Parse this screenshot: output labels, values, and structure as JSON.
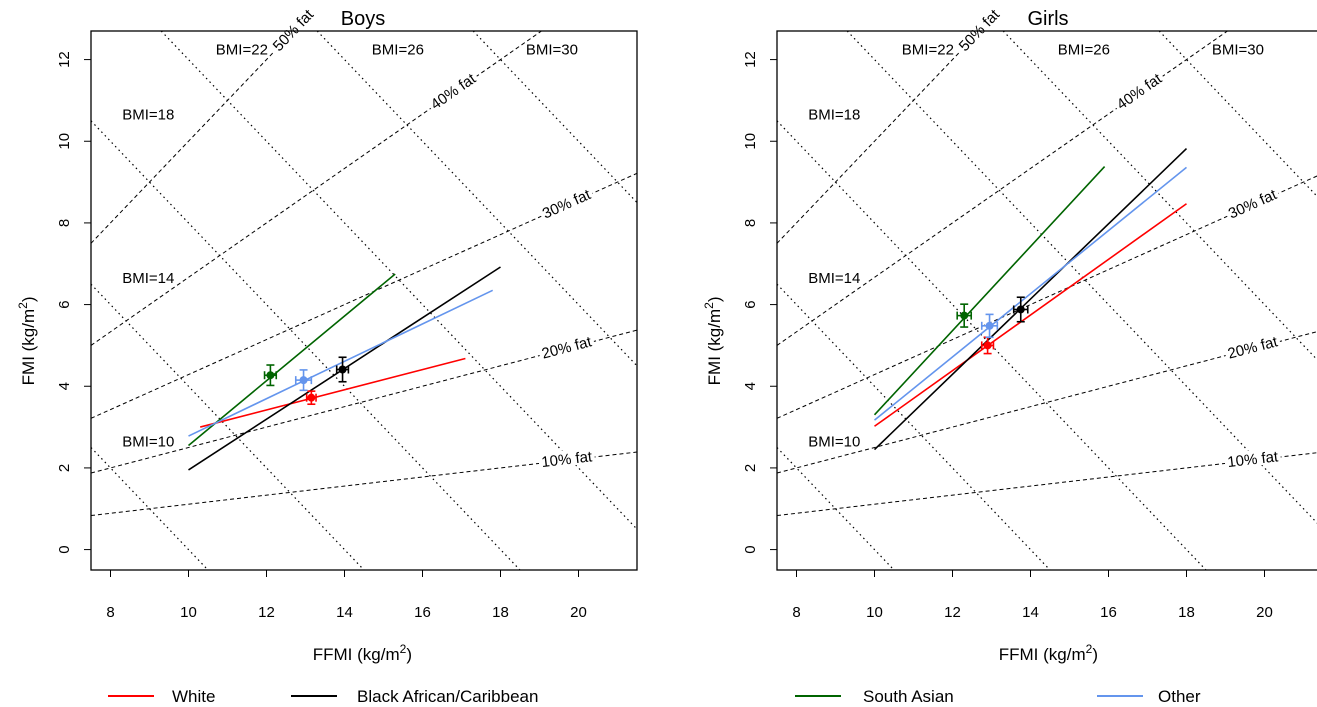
{
  "chart_data": [
    {
      "type": "line",
      "title": "Boys",
      "xlabel": "FFMI (kg/m",
      "xlabel_sup": "2",
      "xlabel_end": ")",
      "ylabel": "FMI (kg/m",
      "ylabel_sup": "2",
      "ylabel_end": ")",
      "xlim": [
        7.5,
        21.5
      ],
      "ylim": [
        -0.5,
        12.7
      ],
      "xticks": [
        8,
        10,
        12,
        14,
        16,
        18,
        20
      ],
      "yticks": [
        0,
        2,
        4,
        6,
        8,
        10,
        12
      ],
      "grid": false,
      "bmi_contours": [
        10,
        14,
        18,
        22,
        26,
        30
      ],
      "fat_contours": [
        10,
        20,
        30,
        40,
        50
      ],
      "bmi_labels": [
        {
          "bmi": 10,
          "text": "BMI=10",
          "x": 8.3,
          "y": 2.65
        },
        {
          "bmi": 14,
          "text": "BMI=14",
          "x": 8.3,
          "y": 6.65
        },
        {
          "bmi": 18,
          "text": "BMI=18",
          "x": 8.3,
          "y": 10.65
        },
        {
          "bmi": 22,
          "text": "BMI=22",
          "x": 10.7,
          "y": 12.25
        },
        {
          "bmi": 26,
          "text": "BMI=26",
          "x": 14.7,
          "y": 12.25
        },
        {
          "bmi": 30,
          "text": "BMI=30",
          "x": 18.65,
          "y": 12.25
        }
      ],
      "fat_labels": [
        {
          "pct": 10,
          "text": "10% fat",
          "x": 19.7
        },
        {
          "pct": 20,
          "text": "20% fat",
          "x": 19.7
        },
        {
          "pct": 30,
          "text": "30% fat",
          "x": 19.7
        },
        {
          "pct": 40,
          "text": "40% fat",
          "x": 16.8
        },
        {
          "pct": 50,
          "text": "50% fat",
          "x": 12.7
        }
      ],
      "series": [
        {
          "name": "White",
          "color": "#ff0000",
          "line": {
            "x": [
              10.3,
              17.1
            ],
            "y": [
              3.0,
              4.68
            ]
          },
          "point": {
            "x": 13.15,
            "y": 3.72,
            "xerr": 0.12,
            "yerr": 0.16
          }
        },
        {
          "name": "Black African/Caribbean",
          "color": "#000000",
          "line": {
            "x": [
              10.0,
              18.0
            ],
            "y": [
              1.95,
              6.92
            ]
          },
          "point": {
            "x": 13.95,
            "y": 4.41,
            "xerr": 0.15,
            "yerr": 0.3
          }
        },
        {
          "name": "South Asian",
          "color": "#006400",
          "line": {
            "x": [
              10.0,
              15.3
            ],
            "y": [
              2.55,
              6.75
            ]
          },
          "point": {
            "x": 12.1,
            "y": 4.27,
            "xerr": 0.15,
            "yerr": 0.25
          }
        },
        {
          "name": "Other",
          "color": "#6495ed",
          "line": {
            "x": [
              10.0,
              17.8
            ],
            "y": [
              2.78,
              6.35
            ]
          },
          "point": {
            "x": 12.95,
            "y": 4.15,
            "xerr": 0.2,
            "yerr": 0.25
          }
        }
      ]
    },
    {
      "type": "line",
      "title": "Girls",
      "xlabel": "FFMI (kg/m",
      "xlabel_sup": "2",
      "xlabel_end": ")",
      "ylabel": "FMI (kg/m",
      "ylabel_sup": "2",
      "ylabel_end": ")",
      "xlim": [
        7.5,
        21.5
      ],
      "ylim": [
        -0.5,
        12.7
      ],
      "xticks": [
        8,
        10,
        12,
        14,
        16,
        18,
        20
      ],
      "yticks": [
        0,
        2,
        4,
        6,
        8,
        10,
        12
      ],
      "grid": false,
      "bmi_contours": [
        10,
        14,
        18,
        22,
        26,
        30
      ],
      "fat_contours": [
        10,
        20,
        30,
        40,
        50
      ],
      "bmi_labels": [
        {
          "bmi": 10,
          "text": "BMI=10",
          "x": 8.3,
          "y": 2.65
        },
        {
          "bmi": 14,
          "text": "BMI=14",
          "x": 8.3,
          "y": 6.65
        },
        {
          "bmi": 18,
          "text": "BMI=18",
          "x": 8.3,
          "y": 10.65
        },
        {
          "bmi": 22,
          "text": "BMI=22",
          "x": 10.7,
          "y": 12.25
        },
        {
          "bmi": 26,
          "text": "BMI=26",
          "x": 14.7,
          "y": 12.25
        },
        {
          "bmi": 30,
          "text": "BMI=30",
          "x": 18.65,
          "y": 12.25
        }
      ],
      "fat_labels": [
        {
          "pct": 10,
          "text": "10% fat",
          "x": 19.7
        },
        {
          "pct": 20,
          "text": "20% fat",
          "x": 19.7
        },
        {
          "pct": 30,
          "text": "30% fat",
          "x": 19.7
        },
        {
          "pct": 40,
          "text": "40% fat",
          "x": 16.8
        },
        {
          "pct": 50,
          "text": "50% fat",
          "x": 12.7
        }
      ],
      "series": [
        {
          "name": "White",
          "color": "#ff0000",
          "line": {
            "x": [
              10.0,
              18.0
            ],
            "y": [
              3.02,
              8.47
            ]
          },
          "point": {
            "x": 12.9,
            "y": 5.0,
            "xerr": 0.15,
            "yerr": 0.2
          }
        },
        {
          "name": "Black African/Caribbean",
          "color": "#000000",
          "line": {
            "x": [
              10.0,
              18.0
            ],
            "y": [
              2.45,
              9.82
            ]
          },
          "point": {
            "x": 13.75,
            "y": 5.88,
            "xerr": 0.18,
            "yerr": 0.3
          }
        },
        {
          "name": "South Asian",
          "color": "#006400",
          "line": {
            "x": [
              10.0,
              15.9
            ],
            "y": [
              3.3,
              9.38
            ]
          },
          "point": {
            "x": 12.3,
            "y": 5.73,
            "xerr": 0.18,
            "yerr": 0.28
          }
        },
        {
          "name": "Other",
          "color": "#6495ed",
          "line": {
            "x": [
              10.0,
              18.0
            ],
            "y": [
              3.17,
              9.36
            ]
          },
          "point": {
            "x": 12.95,
            "y": 5.48,
            "xerr": 0.2,
            "yerr": 0.28
          }
        }
      ]
    }
  ],
  "legend": {
    "placement": "bottom",
    "items": [
      {
        "label": "White",
        "color": "#ff0000"
      },
      {
        "label": "Black African/Caribbean",
        "color": "#000000"
      },
      {
        "label": "South Asian",
        "color": "#006400"
      },
      {
        "label": "Other",
        "color": "#6495ed"
      }
    ]
  }
}
